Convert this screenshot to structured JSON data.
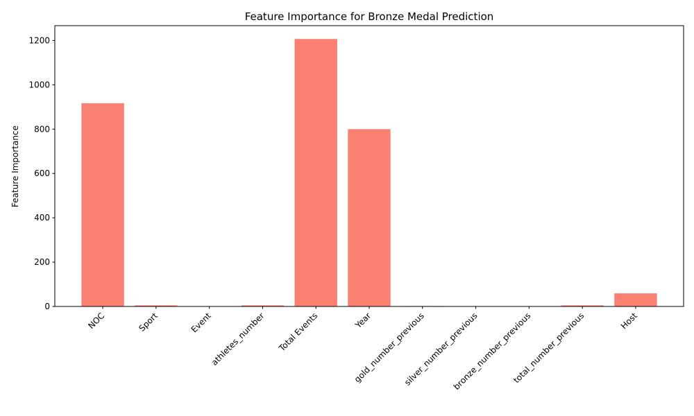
{
  "chart_data": {
    "type": "bar",
    "title": "Feature Importance for Bronze Medal Prediction",
    "xlabel": "",
    "ylabel": "Feature Importance",
    "categories": [
      "NOC",
      "Sport",
      "Event",
      "athletes_number",
      "Total Events",
      "Year",
      "gold_number_previous",
      "silver_number_previous",
      "bronze_number_previous",
      "total_number_previous",
      "Host"
    ],
    "values": [
      917,
      5,
      0,
      5,
      1207,
      800,
      2,
      0,
      0,
      5,
      59
    ],
    "ylim": [
      0,
      1267
    ],
    "yticks": [
      0,
      200,
      400,
      600,
      800,
      1000,
      1200
    ],
    "grid": false,
    "bar_color": "#fa8072"
  }
}
